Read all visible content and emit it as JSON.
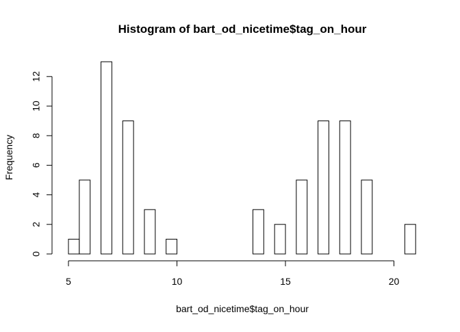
{
  "chart_data": {
    "type": "bar",
    "subtype": "histogram",
    "title": "Histogram of bart_od_nicetime$tag_on_hour",
    "xlabel": "bart_od_nicetime$tag_on_hour",
    "ylabel": "Frequency",
    "bin_width": 0.5,
    "bins": [
      {
        "start": 5.0,
        "end": 5.5,
        "count": 1
      },
      {
        "start": 5.5,
        "end": 6.0,
        "count": 5
      },
      {
        "start": 6.0,
        "end": 6.5,
        "count": 0
      },
      {
        "start": 6.5,
        "end": 7.0,
        "count": 13
      },
      {
        "start": 7.0,
        "end": 7.5,
        "count": 0
      },
      {
        "start": 7.5,
        "end": 8.0,
        "count": 9
      },
      {
        "start": 8.0,
        "end": 8.5,
        "count": 0
      },
      {
        "start": 8.5,
        "end": 9.0,
        "count": 3
      },
      {
        "start": 9.0,
        "end": 9.5,
        "count": 0
      },
      {
        "start": 9.5,
        "end": 10.0,
        "count": 1
      },
      {
        "start": 10.0,
        "end": 10.5,
        "count": 0
      },
      {
        "start": 10.5,
        "end": 11.0,
        "count": 0
      },
      {
        "start": 11.0,
        "end": 11.5,
        "count": 0
      },
      {
        "start": 11.5,
        "end": 12.0,
        "count": 0
      },
      {
        "start": 12.0,
        "end": 12.5,
        "count": 0
      },
      {
        "start": 12.5,
        "end": 13.0,
        "count": 0
      },
      {
        "start": 13.0,
        "end": 13.5,
        "count": 0
      },
      {
        "start": 13.5,
        "end": 14.0,
        "count": 3
      },
      {
        "start": 14.0,
        "end": 14.5,
        "count": 0
      },
      {
        "start": 14.5,
        "end": 15.0,
        "count": 2
      },
      {
        "start": 15.0,
        "end": 15.5,
        "count": 0
      },
      {
        "start": 15.5,
        "end": 16.0,
        "count": 5
      },
      {
        "start": 16.0,
        "end": 16.5,
        "count": 0
      },
      {
        "start": 16.5,
        "end": 17.0,
        "count": 9
      },
      {
        "start": 17.0,
        "end": 17.5,
        "count": 0
      },
      {
        "start": 17.5,
        "end": 18.0,
        "count": 9
      },
      {
        "start": 18.0,
        "end": 18.5,
        "count": 0
      },
      {
        "start": 18.5,
        "end": 19.0,
        "count": 5
      },
      {
        "start": 19.0,
        "end": 19.5,
        "count": 0
      },
      {
        "start": 19.5,
        "end": 20.0,
        "count": 0
      },
      {
        "start": 20.0,
        "end": 20.5,
        "count": 0
      },
      {
        "start": 20.5,
        "end": 21.0,
        "count": 2
      }
    ],
    "xlim": [
      5,
      21
    ],
    "ylim": [
      0,
      13
    ],
    "x_ticks": [
      5,
      10,
      15,
      20
    ],
    "y_ticks": [
      0,
      2,
      4,
      6,
      8,
      10,
      12
    ],
    "grid": false,
    "legend": "none",
    "colors": {
      "bar_fill": "#ffffff",
      "bar_stroke": "#000000",
      "axis": "#000000"
    }
  }
}
